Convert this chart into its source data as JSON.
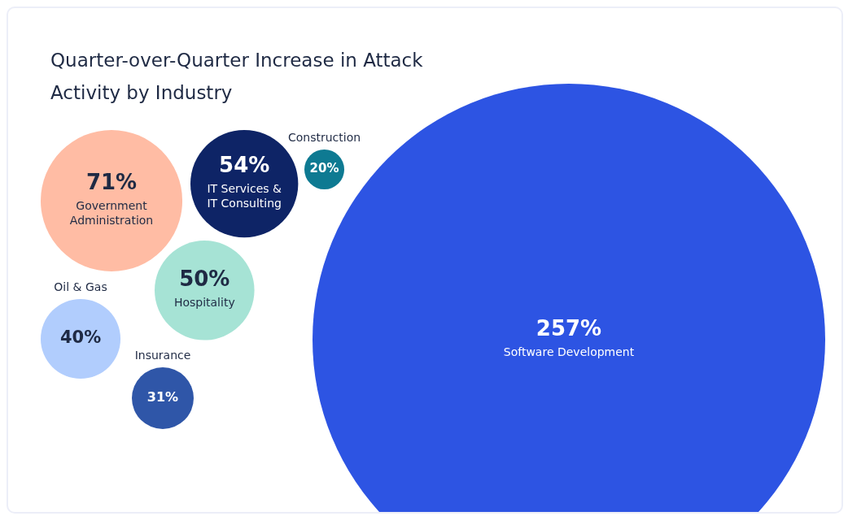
{
  "chart_data": {
    "type": "other",
    "title": "Quarter-over-Quarter Increase in Attack Activity by Industry",
    "categories": [
      "Software Development",
      "Government Administration",
      "IT Services & IT Consulting",
      "Hospitality",
      "Oil & Gas",
      "Insurance",
      "Construction"
    ],
    "values": [
      257,
      71,
      54,
      50,
      40,
      31,
      20
    ],
    "value_labels": [
      "257%",
      "71%",
      "54%",
      "50%",
      "40%",
      "31%",
      "20%"
    ],
    "colors": [
      "#2d54e3",
      "#ffbca4",
      "#0e2466",
      "#a6e3d5",
      "#b1cdfd",
      "#2f56a8",
      "#0e7a92"
    ]
  }
}
